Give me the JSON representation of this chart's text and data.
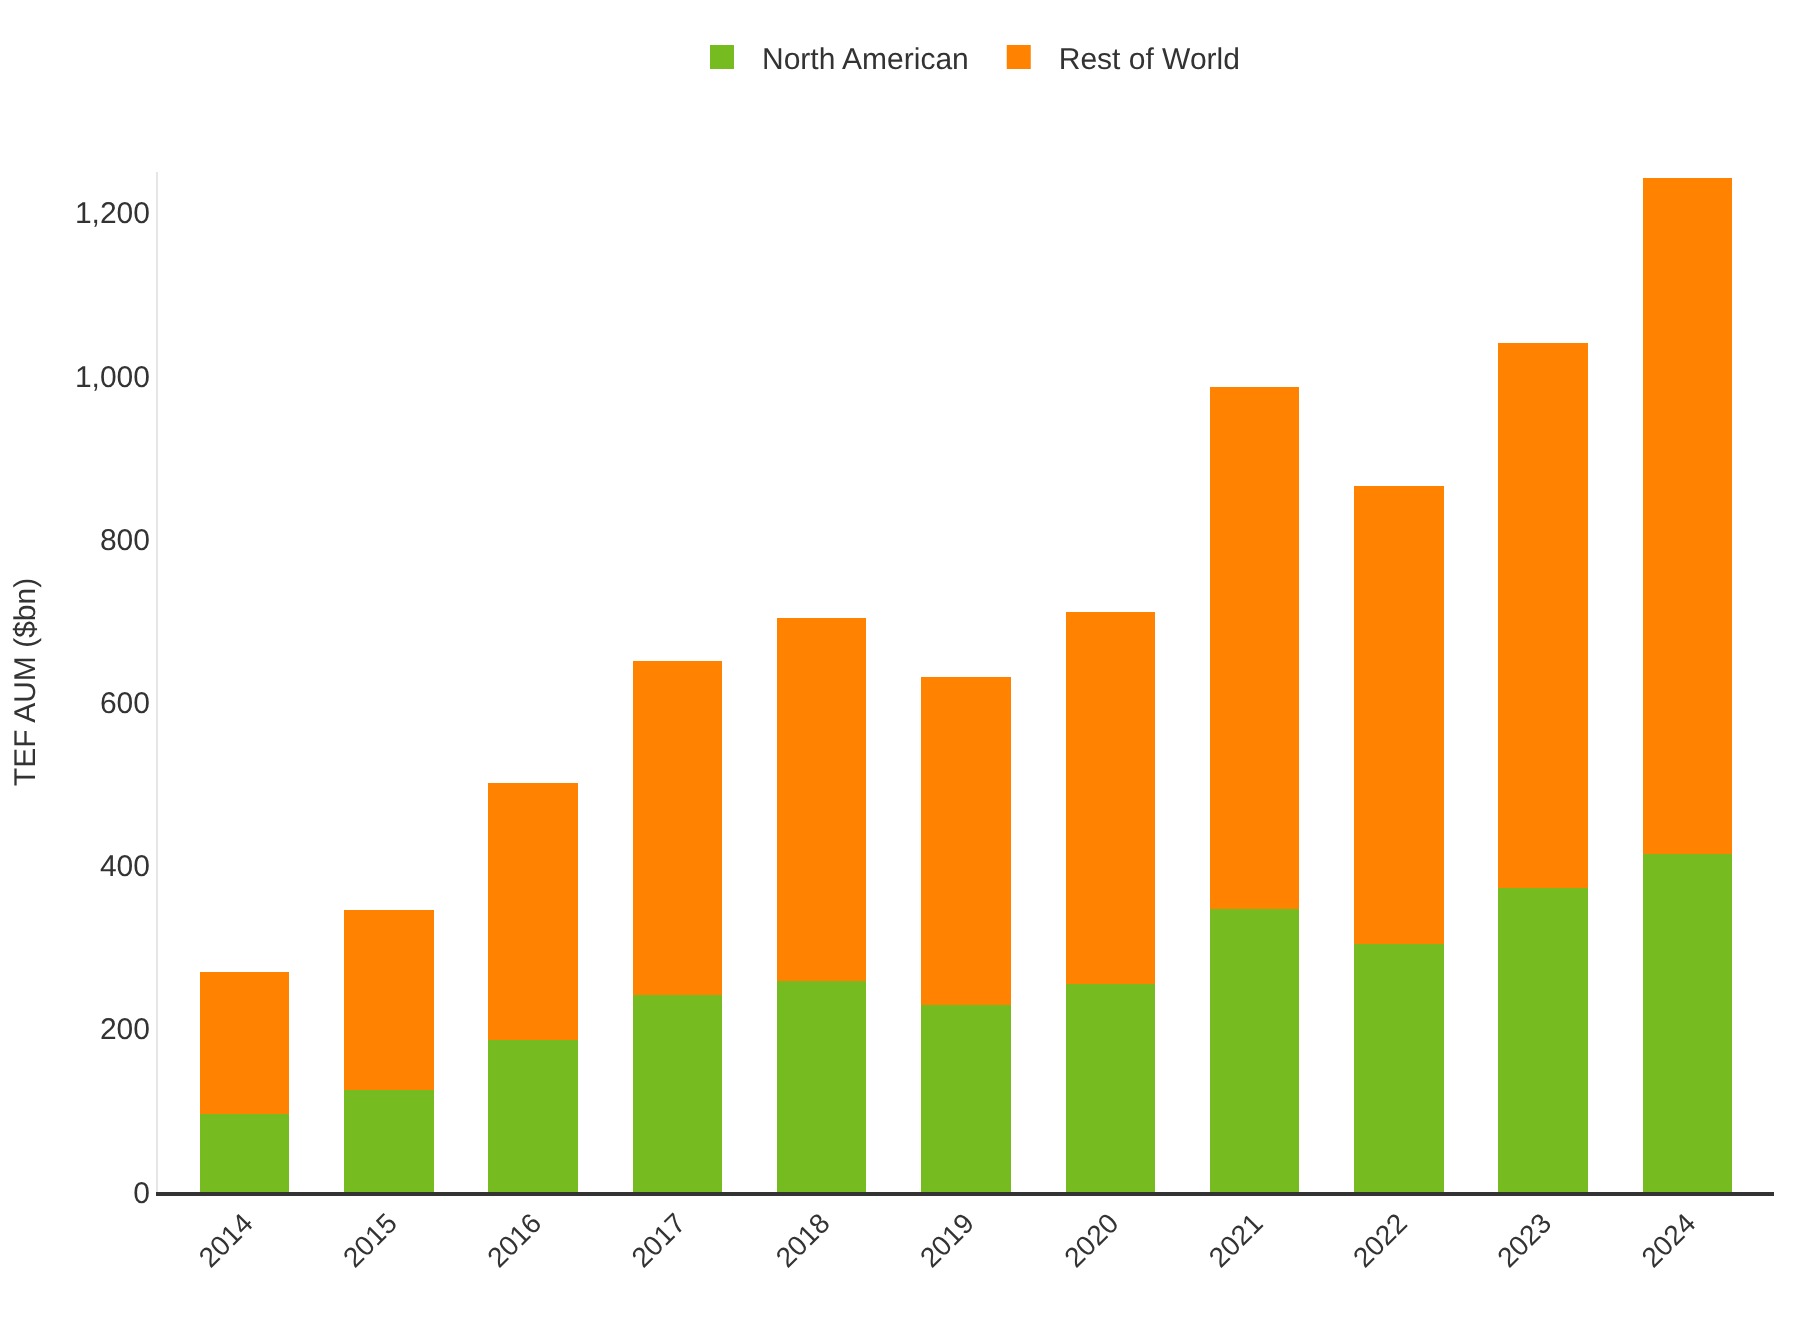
{
  "chart_data": {
    "type": "bar",
    "stacked": true,
    "ylabel": "TEF AUM ($bn)",
    "categories": [
      "2014",
      "2015",
      "2016",
      "2017",
      "2018",
      "2019",
      "2020",
      "2021",
      "2022",
      "2023",
      "2024"
    ],
    "series": [
      {
        "name": "North American",
        "color": "#76bc21",
        "values": [
          96,
          125,
          186,
          241,
          258,
          229,
          255,
          347,
          304,
          373,
          414
        ]
      },
      {
        "name": "Rest of World",
        "color": "#ff8200",
        "values": [
          174,
          220,
          315,
          410,
          446,
          402,
          456,
          639,
          561,
          668,
          829
        ]
      }
    ],
    "ylim": [
      0,
      1250
    ],
    "yticks": [
      0,
      200,
      400,
      600,
      800,
      {
        "value": 1000,
        "label": "1,000"
      },
      {
        "value": 1200,
        "label": "1,200"
      }
    ],
    "grid": false,
    "legend": "top"
  }
}
